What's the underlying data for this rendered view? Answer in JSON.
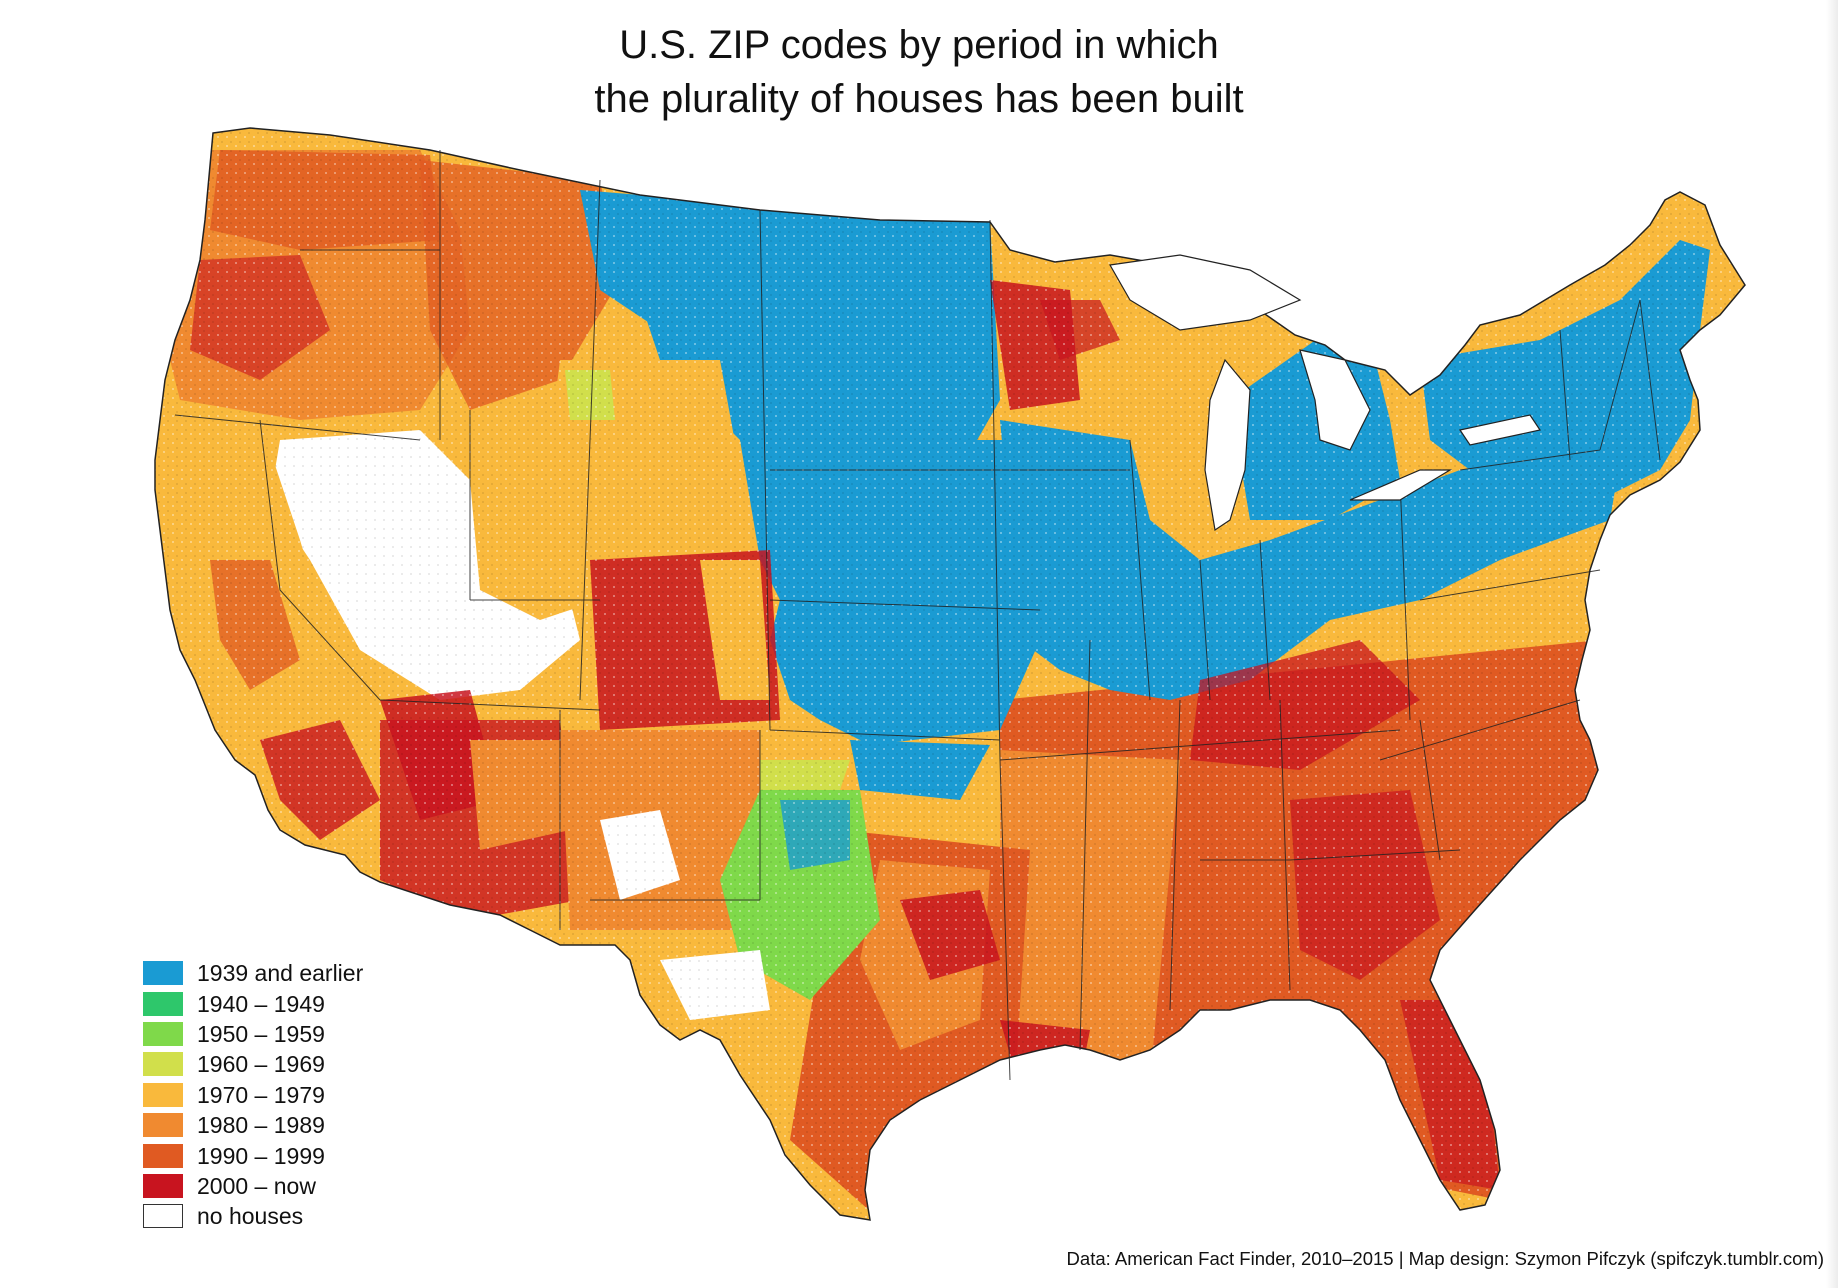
{
  "title": {
    "line1": "U.S. ZIP codes by period in which",
    "line2": "the plurality of houses has been built"
  },
  "legend": [
    {
      "label": "1939 and earlier",
      "color": "#1a9bd3"
    },
    {
      "label": "1940 – 1949",
      "color": "#2ec76b"
    },
    {
      "label": "1950 – 1959",
      "color": "#7fd94a"
    },
    {
      "label": "1960 – 1969",
      "color": "#d1df4b"
    },
    {
      "label": "1970 – 1979",
      "color": "#f9b93c"
    },
    {
      "label": "1980 – 1989",
      "color": "#f08a30"
    },
    {
      "label": "1990 – 1999",
      "color": "#e05a22"
    },
    {
      "label": "2000 – now",
      "color": "#c8141f"
    },
    {
      "label": "no houses",
      "color": "#ffffff"
    }
  ],
  "credit": "Data: American Fact Finder, 2010–2015 | Map design: Szymon Pifczyk (spifczyk.tumblr.com)"
}
